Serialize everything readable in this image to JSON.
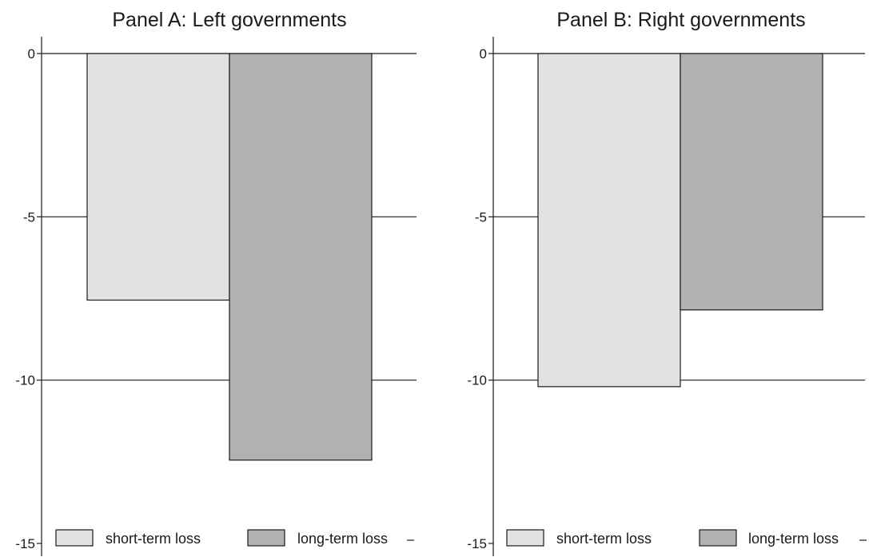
{
  "chart_data": [
    {
      "type": "bar",
      "title": "Panel A: Left governments",
      "categories": [
        "short-term loss",
        "long-term loss"
      ],
      "values": [
        -7.55,
        -12.45
      ],
      "ylim": [
        -15,
        0
      ],
      "yticks": [
        0,
        -5,
        -10,
        -15
      ],
      "ytick_labels": [
        "0",
        "-5",
        "-10",
        "-15"
      ],
      "grid": "horizontal at ticks",
      "legend": {
        "placement": "bottom",
        "entries": [
          "short-term loss",
          "long-term loss"
        ]
      },
      "colors": [
        "#e1e2e2",
        "#b0b1b3"
      ]
    },
    {
      "type": "bar",
      "title": "Panel B: Right governments",
      "categories": [
        "short-term loss",
        "long-term loss"
      ],
      "values": [
        -10.2,
        -7.85
      ],
      "ylim": [
        -15,
        0
      ],
      "yticks": [
        0,
        -5,
        -10,
        -15
      ],
      "ytick_labels": [
        "0",
        "-5",
        "-10",
        "-15"
      ],
      "grid": "horizontal at ticks",
      "legend": {
        "placement": "bottom",
        "entries": [
          "short-term loss",
          "long-term loss"
        ]
      },
      "colors": [
        "#e1e2e2",
        "#b0b1b3"
      ]
    }
  ]
}
